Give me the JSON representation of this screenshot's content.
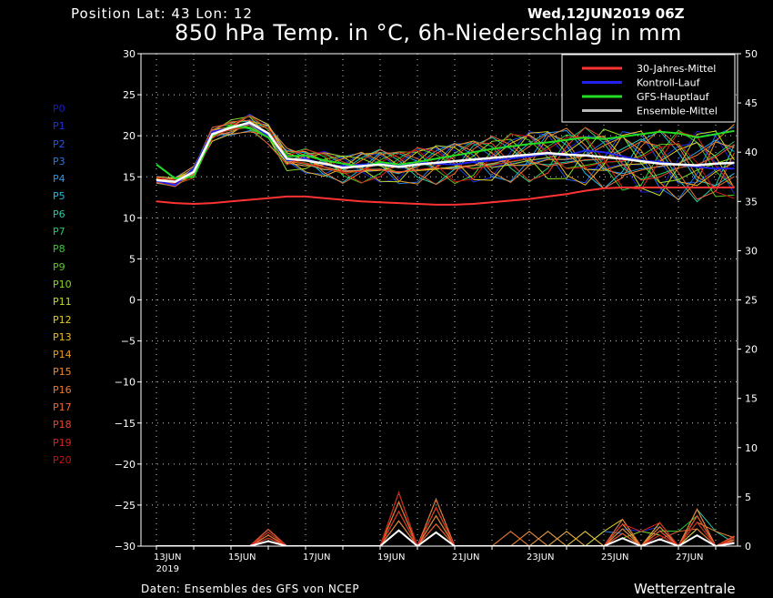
{
  "header": {
    "position": "Position  Lat: 43 Lon: 12",
    "date": "Wed,12JUN2019 06Z",
    "title": "850 hPa Temp. in °C, 6h-Niederschlag in mm"
  },
  "footer": {
    "source": "Daten: Ensembles des GFS von NCEP",
    "brand": "Wetterzentrale"
  },
  "members": [
    {
      "label": "P0",
      "color": "#1a1acc"
    },
    {
      "label": "P1",
      "color": "#1a33dd"
    },
    {
      "label": "P2",
      "color": "#2255ee"
    },
    {
      "label": "P3",
      "color": "#2277ee"
    },
    {
      "label": "P4",
      "color": "#2299ee"
    },
    {
      "label": "P5",
      "color": "#22bbdd"
    },
    {
      "label": "P6",
      "color": "#22ccaa"
    },
    {
      "label": "P7",
      "color": "#22cc66"
    },
    {
      "label": "P8",
      "color": "#33cc33"
    },
    {
      "label": "P9",
      "color": "#55cc22"
    },
    {
      "label": "P10",
      "color": "#88dd22"
    },
    {
      "label": "P11",
      "color": "#bbdd22"
    },
    {
      "label": "P12",
      "color": "#ddcc22"
    },
    {
      "label": "P13",
      "color": "#eebb22"
    },
    {
      "label": "P14",
      "color": "#ee9922"
    },
    {
      "label": "P15",
      "color": "#ee8833"
    },
    {
      "label": "P16",
      "color": "#ee7733"
    },
    {
      "label": "P17",
      "color": "#ee6633"
    },
    {
      "label": "P18",
      "color": "#ee4433"
    },
    {
      "label": "P19",
      "color": "#dd2222"
    },
    {
      "label": "P20",
      "color": "#cc1111"
    }
  ],
  "chart_data": {
    "type": "line",
    "title": "850 hPa Temp. in °C, 6h-Niederschlag in mm",
    "y_left_range": [
      -30,
      30
    ],
    "y_right_range": [
      0,
      50
    ],
    "y_left_ticks": [
      "30",
      "25",
      "20",
      "15",
      "10",
      "5",
      "0",
      "−5",
      "−10",
      "−15",
      "−20",
      "−25",
      "−30"
    ],
    "y_right_ticks": [
      "50",
      "45",
      "40",
      "35",
      "30",
      "25",
      "20",
      "15",
      "10",
      "5",
      "0"
    ],
    "x_ticks": [
      "13JUN",
      "15JUN",
      "17JUN",
      "19JUN",
      "21JUN",
      "23JUN",
      "25JUN",
      "27JUN"
    ],
    "x_sublabel": "2019",
    "grid": true,
    "legend_position": "top-right",
    "legend": [
      {
        "name": "30-Jahres-Mittel",
        "color": "#ff3333"
      },
      {
        "name": "Kontroll-Lauf",
        "color": "#2222ee"
      },
      {
        "name": "GFS-Hauptlauf",
        "color": "#22dd22"
      },
      {
        "name": "Ensemble-Mittel",
        "color": "#bbbbbb"
      }
    ],
    "x_days": [
      0,
      0.5,
      1,
      1.5,
      2,
      2.5,
      3,
      3.5,
      4,
      4.5,
      5,
      5.5,
      6,
      6.5,
      7,
      7.5,
      8,
      8.5,
      9,
      9.5,
      10,
      10.5,
      11,
      11.5,
      12,
      12.5,
      13,
      13.5,
      14,
      14.5,
      15,
      15.5
    ],
    "series": [
      {
        "name": "30-Jahres-Mittel",
        "color": "#ff3333",
        "width": 2,
        "values": [
          12,
          11.8,
          11.7,
          11.8,
          12,
          12.2,
          12.4,
          12.6,
          12.6,
          12.4,
          12.2,
          12,
          11.9,
          11.8,
          11.7,
          11.6,
          11.6,
          11.7,
          11.9,
          12.1,
          12.3,
          12.6,
          12.9,
          13.3,
          13.6,
          13.7,
          13.7,
          13.7,
          13.7,
          13.7,
          13.7,
          13.7
        ]
      },
      {
        "name": "Kontroll-Lauf",
        "color": "#2222ee",
        "width": 2,
        "values": [
          14.5,
          14,
          16,
          20.5,
          21,
          21.5,
          20,
          17,
          17.2,
          16.5,
          16.3,
          16.5,
          16.6,
          16.4,
          16.8,
          16.6,
          16.5,
          16.8,
          17,
          17.2,
          17.5,
          17.8,
          17.6,
          18.2,
          18,
          17.5,
          17,
          16.8,
          16.5,
          16.2,
          16,
          16
        ]
      },
      {
        "name": "GFS-Hauptlauf",
        "color": "#22dd22",
        "width": 2,
        "values": [
          16.5,
          14.8,
          15,
          20,
          21.2,
          21,
          19.8,
          17.5,
          17.6,
          17,
          16.6,
          16.2,
          16.8,
          16.5,
          16.8,
          17.2,
          17.6,
          18,
          18.4,
          18.7,
          19,
          19.2,
          19.5,
          19.8,
          19.6,
          19.9,
          20.2,
          20.5,
          20.3,
          19.8,
          20.2,
          20.6
        ]
      },
      {
        "name": "Ensemble-Mittel",
        "color": "#ffffff",
        "width": 2.5,
        "values": [
          14.6,
          14.4,
          15.6,
          20.2,
          21,
          21.6,
          20.3,
          17.2,
          17,
          16.6,
          16.1,
          16.3,
          16.5,
          16.2,
          16.5,
          16.7,
          16.9,
          17.1,
          17.3,
          17.5,
          17.7,
          17.9,
          17.7,
          17.6,
          17.4,
          17.2,
          16.9,
          16.6,
          16.5,
          16.4,
          16.6,
          16.7
        ]
      }
    ],
    "precip_series": [
      {
        "name": "Ensemble-Mittel",
        "color": "#ffffff",
        "values": [
          0,
          0,
          0,
          0,
          0,
          0,
          0.5,
          0,
          0,
          0,
          0,
          0,
          0,
          1.6,
          0,
          1.4,
          0,
          0,
          0,
          0,
          0,
          0,
          0,
          0,
          0,
          0.8,
          0,
          0.7,
          0,
          1.1,
          0,
          0.3
        ]
      }
    ]
  }
}
